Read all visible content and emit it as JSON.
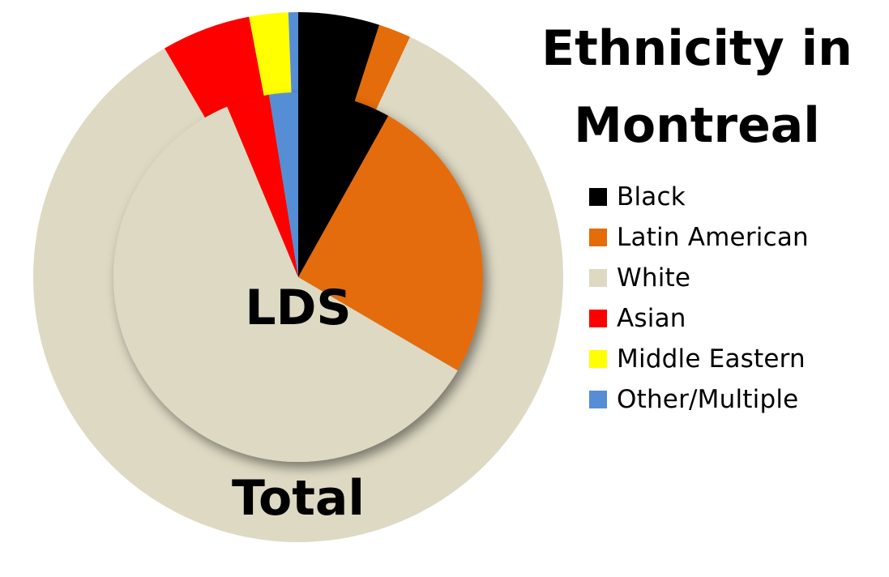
{
  "title_lines": [
    "Ethnicity in",
    "Montreal"
  ],
  "chart_data": {
    "type": "pie",
    "title": "Ethnicity in Montreal",
    "categories": [
      "Black",
      "Latin American",
      "White",
      "Asian",
      "Middle Eastern",
      "Other/Multiple"
    ],
    "colors": [
      "#000000",
      "#e46c0a",
      "#ddd9c3",
      "#ff0000",
      "#ffff00",
      "#558ed5"
    ],
    "series": [
      {
        "name": "LDS",
        "values": [
          8.0,
          25.0,
          59.5,
          3.7,
          0.0,
          2.5
        ]
      },
      {
        "name": "Total",
        "values": [
          5.0,
          2.0,
          85.5,
          5.5,
          2.4,
          0.6
        ]
      }
    ],
    "legend_position": "right"
  }
}
